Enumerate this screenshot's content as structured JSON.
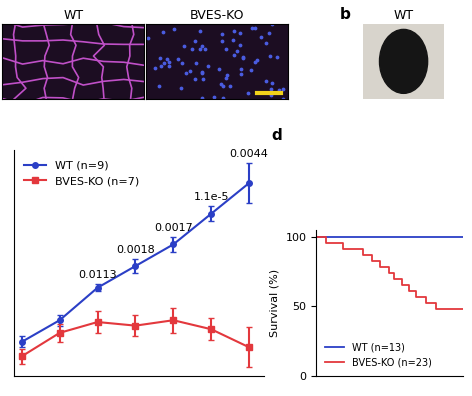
{
  "images": {
    "labels": [
      "WT",
      "BVES-KO"
    ]
  },
  "panel_b": {
    "letter": "b",
    "label": "WT"
  },
  "chart_data": [
    {
      "type": "line",
      "legend": "upper left",
      "tick_labels": false,
      "xlim": [
        0.8,
        7.4
      ],
      "ylim": [
        0,
        12.5
      ],
      "x": [
        1,
        2,
        3,
        4,
        5,
        6,
        7
      ],
      "series": [
        {
          "name": "WT (n=9)",
          "color": "#2b3fc6",
          "marker": "circle",
          "values": [
            1.9,
            3.1,
            4.9,
            6.1,
            7.3,
            9.0,
            10.7
          ],
          "errors": [
            0.3,
            0.3,
            0.2,
            0.4,
            0.4,
            0.4,
            1.1
          ]
        },
        {
          "name": "BVES-KO (n=7)",
          "color": "#e3383d",
          "marker": "square",
          "values": [
            1.1,
            2.4,
            3.0,
            2.8,
            3.1,
            2.6,
            1.6
          ],
          "errors": [
            0.4,
            0.5,
            0.6,
            0.6,
            0.7,
            0.6,
            1.1
          ]
        }
      ],
      "annotations": [
        {
          "x": 3,
          "text": "0.0113"
        },
        {
          "x": 4,
          "text": "0.0018"
        },
        {
          "x": 5,
          "text": "0.0017"
        },
        {
          "x": 6,
          "text": "1.1e-5"
        },
        {
          "x": 7,
          "text": "0.0044"
        }
      ]
    },
    {
      "type": "step",
      "panel": "d",
      "ylabel": "Survival (%)",
      "xlim": [
        0,
        60
      ],
      "ylim": [
        0,
        105
      ],
      "yticks": [
        0,
        50,
        100
      ],
      "tick_labels": "y",
      "legend": "lower left",
      "series": [
        {
          "name": "WT (n=13)",
          "color": "#2b3fc6",
          "x": [
            0,
            60
          ],
          "values": [
            100,
            100
          ]
        },
        {
          "name": "BVES-KO (n=23)",
          "color": "#e3383d",
          "x": [
            0,
            4,
            11,
            19,
            23,
            26,
            30,
            32,
            35,
            38,
            41,
            45,
            49,
            60
          ],
          "values": [
            100,
            95.7,
            91.3,
            87.0,
            82.6,
            78.3,
            73.9,
            69.6,
            65.2,
            60.9,
            56.5,
            52.2,
            47.8,
            47.8
          ]
        }
      ]
    }
  ]
}
